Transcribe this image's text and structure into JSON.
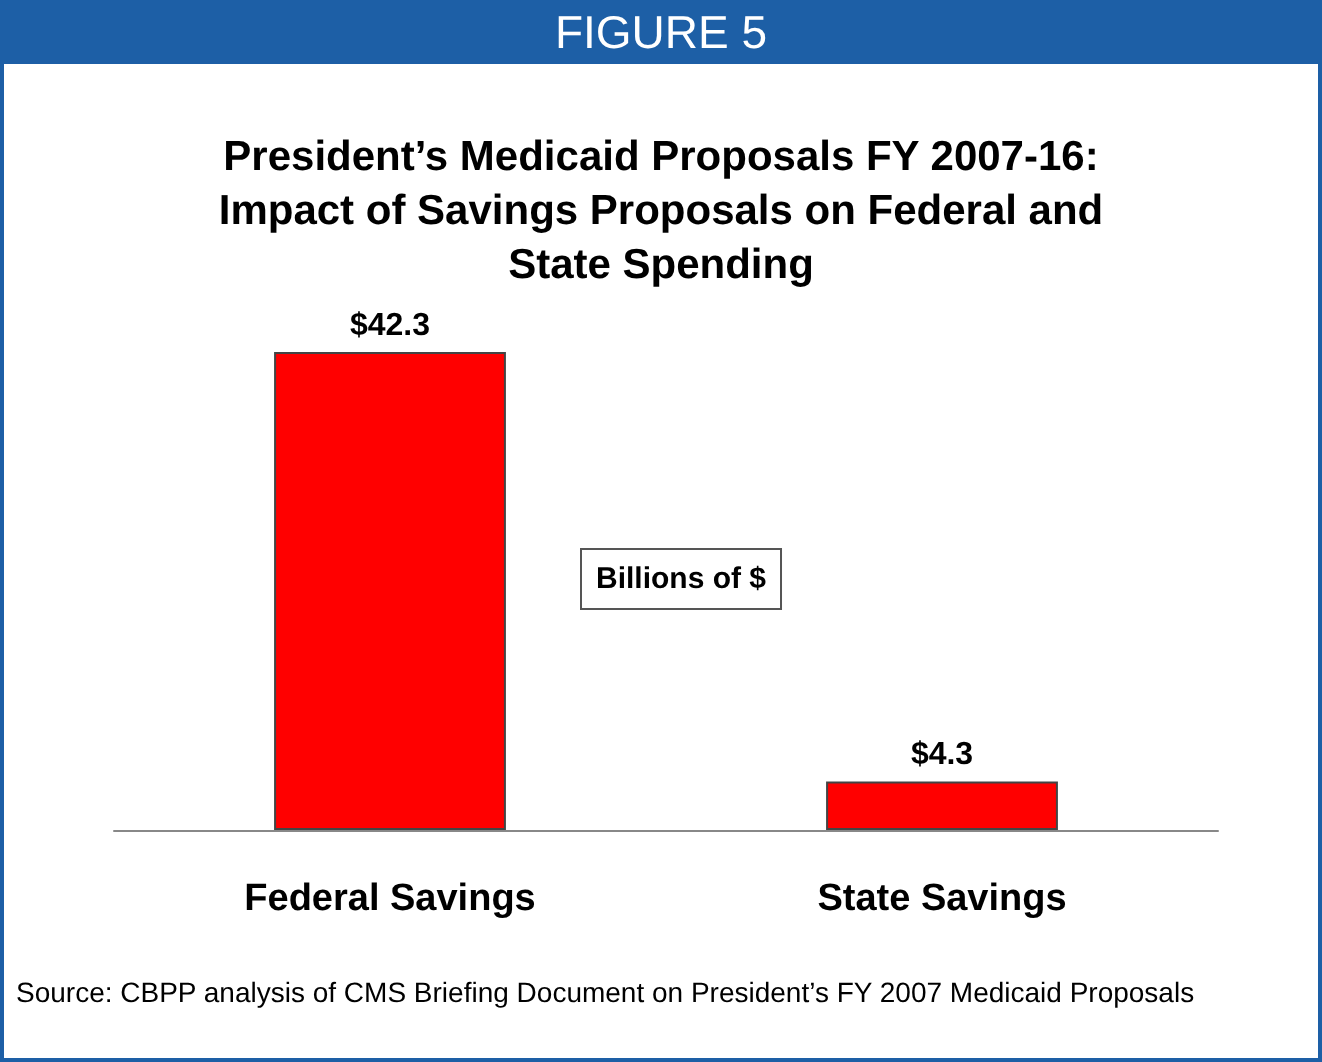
{
  "chart_data": {
    "type": "bar",
    "title": "FIGURE 5",
    "subtitle": "President’s Medicaid Proposals FY 2007-16:\nImpact of Savings Proposals on Federal and\nState Spending",
    "categories": [
      "Federal Savings",
      "State Savings"
    ],
    "values": [
      42.3,
      4.3
    ],
    "value_labels": [
      "$42.3",
      "$4.3"
    ],
    "color": "#ff0000",
    "annotations": [
      "Billions of $",
      "Source: CBPP analysis of CMS Briefing Document on President’s FY 2007 Medicaid Proposals"
    ],
    "grid": false
  }
}
